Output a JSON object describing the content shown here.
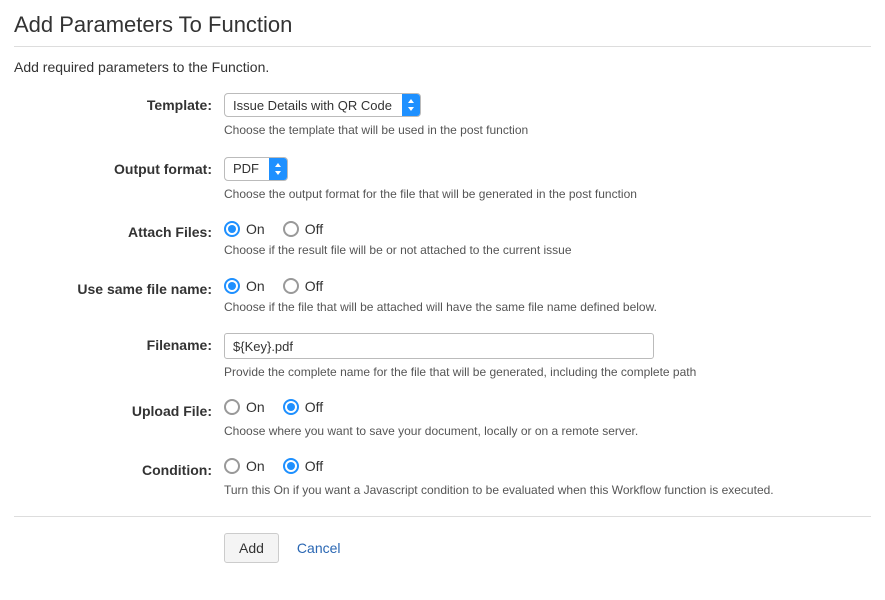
{
  "title": "Add Parameters To Function",
  "intro": "Add required parameters to the Function.",
  "fields": {
    "template": {
      "label": "Template:",
      "value": "Issue Details with QR Code",
      "help": "Choose the template that will be used in the post function"
    },
    "outputFormat": {
      "label": "Output format:",
      "value": "PDF",
      "help": "Choose the output format for the file that will be generated in the post function"
    },
    "attachFiles": {
      "label": "Attach Files:",
      "onLabel": "On",
      "offLabel": "Off",
      "selected": "on",
      "help": "Choose if the result file will be or not attached to the current issue"
    },
    "sameFileName": {
      "label": "Use same file name:",
      "onLabel": "On",
      "offLabel": "Off",
      "selected": "on",
      "help": "Choose if the file that will be attached will have the same file name defined below."
    },
    "filename": {
      "label": "Filename:",
      "value": "${Key}.pdf",
      "help": "Provide the complete name for the file that will be generated, including the complete path"
    },
    "uploadFile": {
      "label": "Upload File:",
      "onLabel": "On",
      "offLabel": "Off",
      "selected": "off",
      "help": "Choose where you want to save your document, locally or on a remote server."
    },
    "condition": {
      "label": "Condition:",
      "onLabel": "On",
      "offLabel": "Off",
      "selected": "off",
      "help": "Turn this On if you want a Javascript condition to be evaluated when this Workflow function is executed."
    }
  },
  "buttons": {
    "add": "Add",
    "cancel": "Cancel"
  }
}
